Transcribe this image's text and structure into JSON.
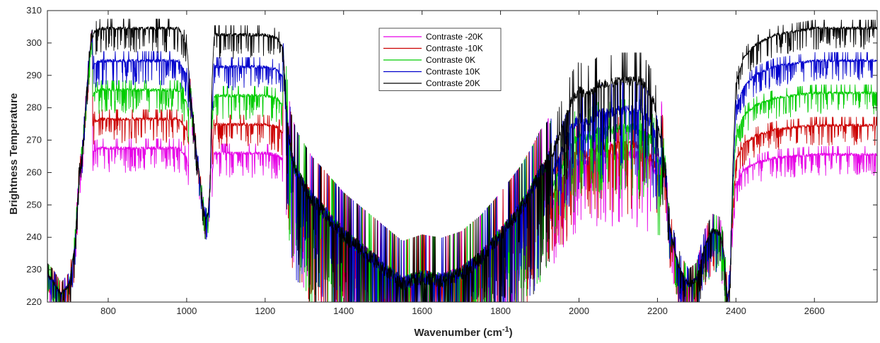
{
  "chart_data": {
    "type": "line",
    "xlabel": "Wavenumber (cm",
    "xlabel_sup": "-1",
    "xlabel_close": ")",
    "ylabel": "Brightness Temperature",
    "xlim": [
      645,
      2760
    ],
    "ylim": [
      220,
      310
    ],
    "xticks": [
      800,
      1000,
      1200,
      1400,
      1600,
      1800,
      2000,
      2200,
      2400,
      2600
    ],
    "yticks": [
      220,
      230,
      240,
      250,
      260,
      270,
      280,
      290,
      300,
      310
    ],
    "legend_position": "top-center",
    "grid": false,
    "base_profile": {
      "x": [
        645,
        660,
        680,
        700,
        715,
        725,
        735,
        745,
        755,
        765,
        780,
        800,
        850,
        900,
        950,
        980,
        1000,
        1010,
        1020,
        1030,
        1040,
        1048,
        1055,
        1060,
        1065,
        1070,
        1080,
        1100,
        1150,
        1200,
        1230,
        1245,
        1255,
        1265,
        1280,
        1300,
        1320,
        1350,
        1400,
        1450,
        1500,
        1550,
        1600,
        1650,
        1700,
        1750,
        1800,
        1850,
        1880,
        1900,
        1920,
        1940,
        1960,
        1980,
        2000,
        2020,
        2050,
        2080,
        2100,
        2130,
        2160,
        2190,
        2210,
        2220,
        2230,
        2245,
        2260,
        2280,
        2300,
        2320,
        2340,
        2360,
        2370,
        2378,
        2385,
        2392,
        2400,
        2420,
        2450,
        2500,
        2550,
        2600,
        2650,
        2700,
        2760
      ],
      "y": [
        229,
        227,
        223,
        226,
        238,
        258,
        268,
        286,
        300,
        304,
        305,
        305,
        305,
        305,
        305,
        305,
        300,
        285,
        272,
        262,
        252,
        246,
        248,
        258,
        290,
        304,
        304,
        304,
        304,
        304,
        303,
        300,
        280,
        268,
        262,
        258,
        254,
        250,
        243,
        238,
        233,
        228,
        230,
        229,
        231,
        236,
        243,
        251,
        257,
        262,
        265,
        275,
        282,
        290,
        294,
        292,
        296,
        296,
        297,
        297,
        297,
        290,
        275,
        260,
        245,
        236,
        230,
        226,
        228,
        238,
        243,
        242,
        235,
        222,
        226,
        262,
        288,
        296,
        300,
        303,
        304,
        305,
        305,
        305,
        305
      ]
    },
    "series": [
      {
        "name": "Contraste -20K",
        "color": "#e600e6",
        "plateaus": [
          [
            760,
            1005,
            268
          ],
          [
            1065,
            1245,
            267
          ],
          [
            1930,
            2210,
            272
          ],
          [
            2390,
            2760,
            266
          ]
        ]
      },
      {
        "name": "Contraste -10K",
        "color": "#cc0000",
        "plateaus": [
          [
            760,
            1005,
            277
          ],
          [
            1065,
            1245,
            276
          ],
          [
            1930,
            2210,
            275
          ],
          [
            2390,
            2760,
            275
          ]
        ]
      },
      {
        "name": "Contraste 0K",
        "color": "#00cc00",
        "plateaus": [
          [
            760,
            1005,
            286
          ],
          [
            1065,
            1245,
            285
          ],
          [
            1930,
            2210,
            281
          ],
          [
            2390,
            2760,
            285
          ]
        ]
      },
      {
        "name": "Contraste 10K",
        "color": "#0000cc",
        "plateaus": [
          [
            760,
            1005,
            295
          ],
          [
            1065,
            1245,
            294
          ],
          [
            1930,
            2210,
            287
          ],
          [
            2390,
            2760,
            295
          ]
        ]
      },
      {
        "name": "Contraste 20K",
        "color": "#000000",
        "plateaus": [
          [
            760,
            1005,
            305
          ],
          [
            1065,
            1245,
            304
          ],
          [
            1930,
            2210,
            297
          ],
          [
            2390,
            2760,
            305
          ]
        ]
      }
    ]
  }
}
